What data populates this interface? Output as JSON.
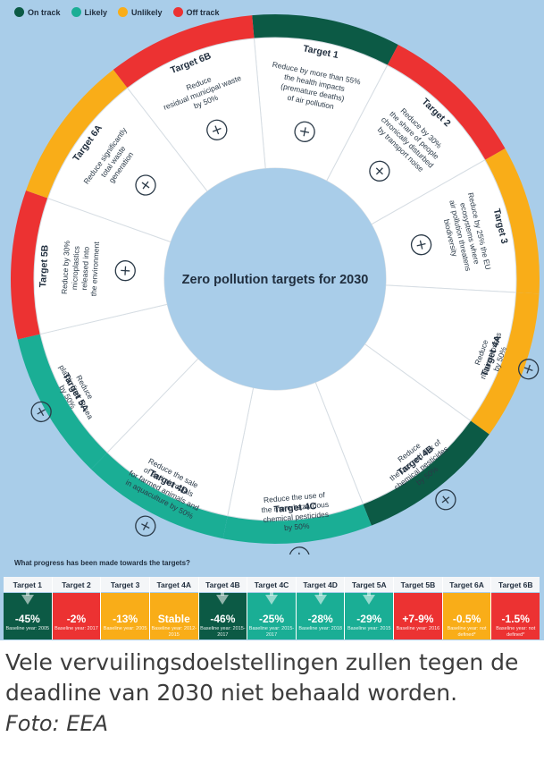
{
  "colors": {
    "on_track": "#0c5a45",
    "likely": "#1aae95",
    "unlikely": "#f9ad18",
    "off_track": "#ec3232",
    "background": "#a9cde9",
    "center": "#a9cde9"
  },
  "legend": [
    {
      "label": "On track",
      "color": "#0c5a45"
    },
    {
      "label": "Likely",
      "color": "#1aae95"
    },
    {
      "label": "Unlikely",
      "color": "#f9ad18"
    },
    {
      "label": "Off track",
      "color": "#ec3232"
    }
  ],
  "center_title": "Zero pollution targets for 2030",
  "segments": [
    {
      "target": "Target 1",
      "status_color": "#0c5a45",
      "lines": [
        "Reduce by more than 55%",
        "the health impacts",
        "(premature deaths)",
        "of air pollution"
      ],
      "icon": "lungs-icon"
    },
    {
      "target": "Target 2",
      "status_color": "#ec3232",
      "lines": [
        "Reduce by 30%",
        "the share of people",
        "chronically disturbed",
        "by transport noise"
      ],
      "icon": "ear-icon"
    },
    {
      "target": "Target 3",
      "status_color": "#f9ad18",
      "lines": [
        "Reduce by 25% the EU",
        "ecosystems where",
        "air pollution threatens",
        "biodiversity"
      ],
      "icon": "bee-icon"
    },
    {
      "target": "Target 4A",
      "status_color": "#f9ad18",
      "lines": [
        "Reduce",
        "nutrient losses",
        "by 50%"
      ],
      "icon": "field-icon"
    },
    {
      "target": "Target 4B",
      "status_color": "#0c5a45",
      "lines": [
        "Reduce",
        "the use and risk of",
        "chemical pesticides",
        "by 50%"
      ],
      "icon": "sprayer-icon"
    },
    {
      "target": "Target 4C",
      "status_color": "#1aae95",
      "lines": [
        "Reduce the use of",
        "the more hazardous",
        "chemical pesticides",
        "by 50%"
      ],
      "icon": "hazard-icon"
    },
    {
      "target": "Target 4D",
      "status_color": "#1aae95",
      "lines": [
        "Reduce the sale",
        "of antimicrobials",
        "for farmed animals and",
        "in aquaculture by 50%"
      ],
      "icon": "pills-icon"
    },
    {
      "target": "Target 5A",
      "status_color": "#1aae95",
      "lines": [
        "Reduce",
        "plastic litter at sea",
        "by 50%"
      ],
      "icon": "bottle-icon"
    },
    {
      "target": "Target 5B",
      "status_color": "#ec3232",
      "lines": [
        "Reduce by 30%",
        "microplastics",
        "released into",
        "the environment"
      ],
      "icon": "microplastics-icon"
    },
    {
      "target": "Target 6A",
      "status_color": "#f9ad18",
      "lines": [
        "Reduce significantly",
        "total waste",
        "generation"
      ],
      "icon": "bins-icon"
    },
    {
      "target": "Target 6B",
      "status_color": "#ec3232",
      "lines": [
        "Reduce",
        "residual municipal waste",
        "by 50%"
      ],
      "icon": "paper-icon"
    }
  ],
  "progress_heading": "What progress has been made towards the targets?",
  "progress": [
    {
      "target": "Target 1",
      "value": "-45%",
      "baseline": "Baseline year: 2005",
      "color": "#0c5a45",
      "arrow": true
    },
    {
      "target": "Target 2",
      "value": "-2%",
      "baseline": "Baseline year: 2017",
      "color": "#ec3232",
      "arrow": false
    },
    {
      "target": "Target 3",
      "value": "-13%",
      "baseline": "Baseline year: 2005",
      "color": "#f9ad18",
      "arrow": false
    },
    {
      "target": "Target 4A",
      "value": "Stable",
      "baseline": "Baseline year: 2012-2015",
      "color": "#f9ad18",
      "arrow": false
    },
    {
      "target": "Target 4B",
      "value": "-46%",
      "baseline": "Baseline year: 2015-2017",
      "color": "#0c5a45",
      "arrow": true
    },
    {
      "target": "Target 4C",
      "value": "-25%",
      "baseline": "Baseline year: 2015-2017",
      "color": "#1aae95",
      "arrow": true
    },
    {
      "target": "Target 4D",
      "value": "-28%",
      "baseline": "Baseline year: 2018",
      "color": "#1aae95",
      "arrow": true
    },
    {
      "target": "Target 5A",
      "value": "-29%",
      "baseline": "Baseline year: 2015",
      "color": "#1aae95",
      "arrow": true
    },
    {
      "target": "Target 5B",
      "value": "+7-9%",
      "baseline": "Baseline year: 2016",
      "color": "#ec3232",
      "arrow": false
    },
    {
      "target": "Target 6A",
      "value": "-0.5%",
      "baseline": "Baseline year: not defined*",
      "color": "#f9ad18",
      "arrow": false
    },
    {
      "target": "Target 6B",
      "value": "-1.5%",
      "baseline": "Baseline year: not defined*",
      "color": "#ec3232",
      "arrow": false
    }
  ],
  "caption": "Vele vervuilingsdoelstellingen zullen tegen de deadline van 2030 niet behaald worden.",
  "credit": "Foto: EEA"
}
